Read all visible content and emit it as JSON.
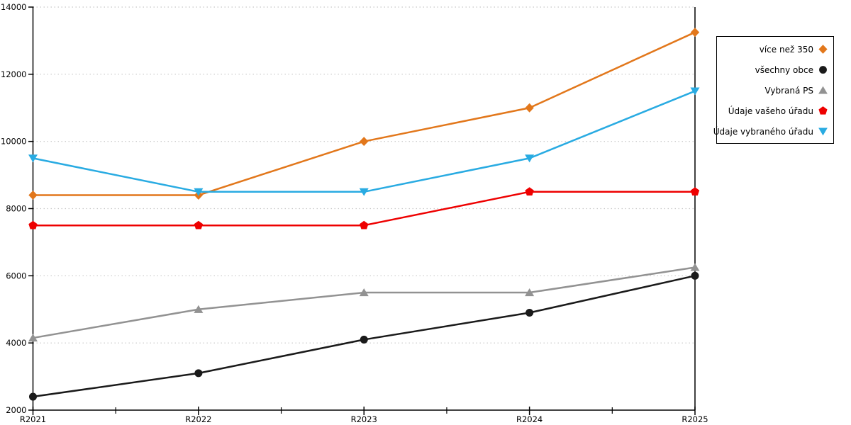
{
  "chart_data": {
    "type": "line",
    "title": "",
    "xlabel": "",
    "ylabel": "",
    "categories": [
      "R2021",
      "R2022",
      "R2023",
      "R2024",
      "R2025"
    ],
    "series": [
      {
        "name": "více než 350",
        "marker": "diamond",
        "color": "#E2771B",
        "values": [
          8400,
          8400,
          10000,
          11000,
          13250
        ]
      },
      {
        "name": "všechny obce",
        "marker": "circle",
        "color": "#1A1A1A",
        "values": [
          2400,
          3100,
          4100,
          4900,
          6000
        ]
      },
      {
        "name": "Vybraná PS",
        "marker": "triangle-up",
        "color": "#929292",
        "values": [
          4150,
          5000,
          5500,
          5500,
          6250
        ]
      },
      {
        "name": "Údaje vašeho úřadu",
        "marker": "pentagon",
        "color": "#EE0000",
        "values": [
          7500,
          7500,
          7500,
          8500,
          8500
        ]
      },
      {
        "name": "Údaje vybraného úřadu",
        "marker": "triangle-down",
        "color": "#29ABE2",
        "values": [
          9500,
          8500,
          8500,
          9500,
          11500
        ]
      }
    ],
    "ylim": [
      2000,
      14000
    ],
    "ytick_step": 2000,
    "y_tick_labels": [
      "2000",
      "4000",
      "6000",
      "8000",
      "10000",
      "12000",
      "14000"
    ],
    "grid": "horizontal-dotted",
    "legend_position": "right-outside-boxed"
  },
  "colors": {
    "axis": "#000000",
    "gridline": "#C8C8C8",
    "background": "#FFFFFF"
  }
}
